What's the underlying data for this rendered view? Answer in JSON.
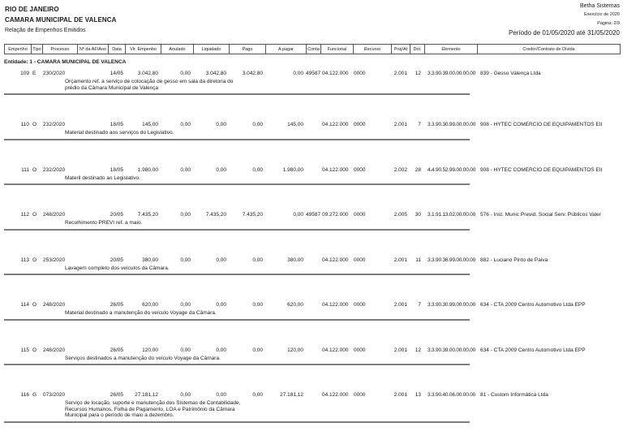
{
  "page": {
    "vendor": "Betha Sistemas",
    "state": "RIO DE JANEIRO",
    "entity_name": "CAMARA MUNICIPAL DE VALENCA",
    "report_title": "Relação de Empenhos Emitidos",
    "exercise": "Exercício de 2020",
    "page_number": "Página: 2/3",
    "period": "Período de 01/05/2020 até 31/05/2020"
  },
  "table": {
    "entity_header": "Entidade: 1 - CAMARA MUNICIPAL DE VALENCA",
    "columns": [
      "Empenho",
      "Tipo",
      "Processo",
      "Nº da AF/Ano",
      "Data",
      "Vlr. Empenho",
      "Anulado",
      "Liquidado",
      "Pago",
      "A pagar",
      "Conta",
      "Funcional",
      "Recurso",
      "Proj/At",
      "Dot.",
      "Elemento",
      "Credor/Contrato de Dívida"
    ],
    "rows": [
      {
        "empenho": "109",
        "tipo": "E",
        "processo": "230/2020",
        "af_ano": "",
        "data": "14/05",
        "vlr_empenho": "3.042,80",
        "anulado": "0,00",
        "liquidado": "3.042,80",
        "pago": "3.042,80",
        "a_pagar": "0,00",
        "conta": "49587",
        "funcional": "04.122.000",
        "recurso": "0000",
        "proj_at": "2.001",
        "dot": "12",
        "elemento": "3.3.90.39.00.00.00.00",
        "credor": "839 - Gesso Valença Ltda",
        "historico": "Orçamento ref. a serviço de  colocação de gesso em sala da diretoria do\nprédio da  Câmara Municipal de Valença"
      },
      {
        "empenho": "110",
        "tipo": "O",
        "processo": "232/2020",
        "af_ano": "",
        "data": "18/05",
        "vlr_empenho": "145,00",
        "anulado": "0,00",
        "liquidado": "0,00",
        "pago": "0,00",
        "a_pagar": "145,00",
        "conta": "",
        "funcional": "04.122.000",
        "recurso": "0000",
        "proj_at": "2.001",
        "dot": "7",
        "elemento": "3.3.90.30.99.00.00.00",
        "credor": "908 - HYTEC COMERCIO DE EQUIPAMENTOS EII",
        "historico": "Material destinado aos serviços do Legislativo."
      },
      {
        "empenho": "111",
        "tipo": "O",
        "processo": "232/2020",
        "af_ano": "",
        "data": "18/05",
        "vlr_empenho": "1.980,00",
        "anulado": "0,00",
        "liquidado": "0,00",
        "pago": "0,00",
        "a_pagar": "1.980,00",
        "conta": "",
        "funcional": "04.122.000",
        "recurso": "0000",
        "proj_at": "2.002",
        "dot": "28",
        "elemento": "4.4.90.52.99.00.00.00",
        "credor": "908 - HYTEC COMERCIO DE EQUIPAMENTOS EII",
        "historico": "Materil destinado ao Legislativo."
      },
      {
        "empenho": "112",
        "tipo": "O",
        "processo": "248/2020",
        "af_ano": "",
        "data": "20/05",
        "vlr_empenho": "7.435,20",
        "anulado": "0,00",
        "liquidado": "7.435,20",
        "pago": "7.435,20",
        "a_pagar": "0,00",
        "conta": "49587",
        "funcional": "09.272.000",
        "recurso": "0000",
        "proj_at": "2.005",
        "dot": "30",
        "elemento": "3.1.91.13.02.00.00.00",
        "credor": "576 - Inst. Munic Previd. Social Serv. Públicos Valer",
        "historico": "Recolhimento PREVI ref. a maio."
      },
      {
        "empenho": "113",
        "tipo": "O",
        "processo": "253/2020",
        "af_ano": "",
        "data": "20/05",
        "vlr_empenho": "380,00",
        "anulado": "0,00",
        "liquidado": "0,00",
        "pago": "0,00",
        "a_pagar": "380,00",
        "conta": "",
        "funcional": "04.122.000",
        "recurso": "0000",
        "proj_at": "2.001",
        "dot": "11",
        "elemento": "3.3.90.36.99.00.00.00",
        "credor": "882 - Luciano Pinto de Paiva",
        "historico": "Lavagem completo dos veículos da Câmara."
      },
      {
        "empenho": "114",
        "tipo": "O",
        "processo": "248/2020",
        "af_ano": "",
        "data": "26/05",
        "vlr_empenho": "620,00",
        "anulado": "0,00",
        "liquidado": "0,00",
        "pago": "0,00",
        "a_pagar": "620,00",
        "conta": "",
        "funcional": "04.122.000",
        "recurso": "0000",
        "proj_at": "2.001",
        "dot": "7",
        "elemento": "3.3.90.30.99.00.00.00",
        "credor": "634 - CTA 2009  Centro Automotivo Ltda EPP",
        "historico": "Material destinado a manutenção do veículo Voyage da Câmara."
      },
      {
        "empenho": "115",
        "tipo": "O",
        "processo": "248/2020",
        "af_ano": "",
        "data": "26/05",
        "vlr_empenho": "120,00",
        "anulado": "0,00",
        "liquidado": "0,00",
        "pago": "0,00",
        "a_pagar": "120,00",
        "conta": "",
        "funcional": "04.122.000",
        "recurso": "0000",
        "proj_at": "2.001",
        "dot": "12",
        "elemento": "3.3.90.39.00.00.00.00",
        "credor": "634 - CTA 2009  Centro Automotivo Ltda EPP",
        "historico": "Serviços destinados a manutenção do veículo Voyage da Câmara."
      },
      {
        "empenho": "116",
        "tipo": "G",
        "processo": "073/2020",
        "af_ano": "",
        "data": "26/05",
        "vlr_empenho": "27.181,12",
        "anulado": "0,00",
        "liquidado": "0,00",
        "pago": "0,00",
        "a_pagar": "27.181,12",
        "conta": "",
        "funcional": "04.122.000",
        "recurso": "0000",
        "proj_at": "2.001",
        "dot": "13",
        "elemento": "3.3.90.40.06.00.00.00",
        "credor": "81 - Custom Informática Ltda",
        "historico": "Serviço de locação, suporte e manutenção dos Sistemas de Contabilidade,\nRecursos Humanos, Folha de Pagamento, LOA e Patrimônio da Câmara\nMunicipal para o período de maio a dezembro."
      }
    ]
  }
}
